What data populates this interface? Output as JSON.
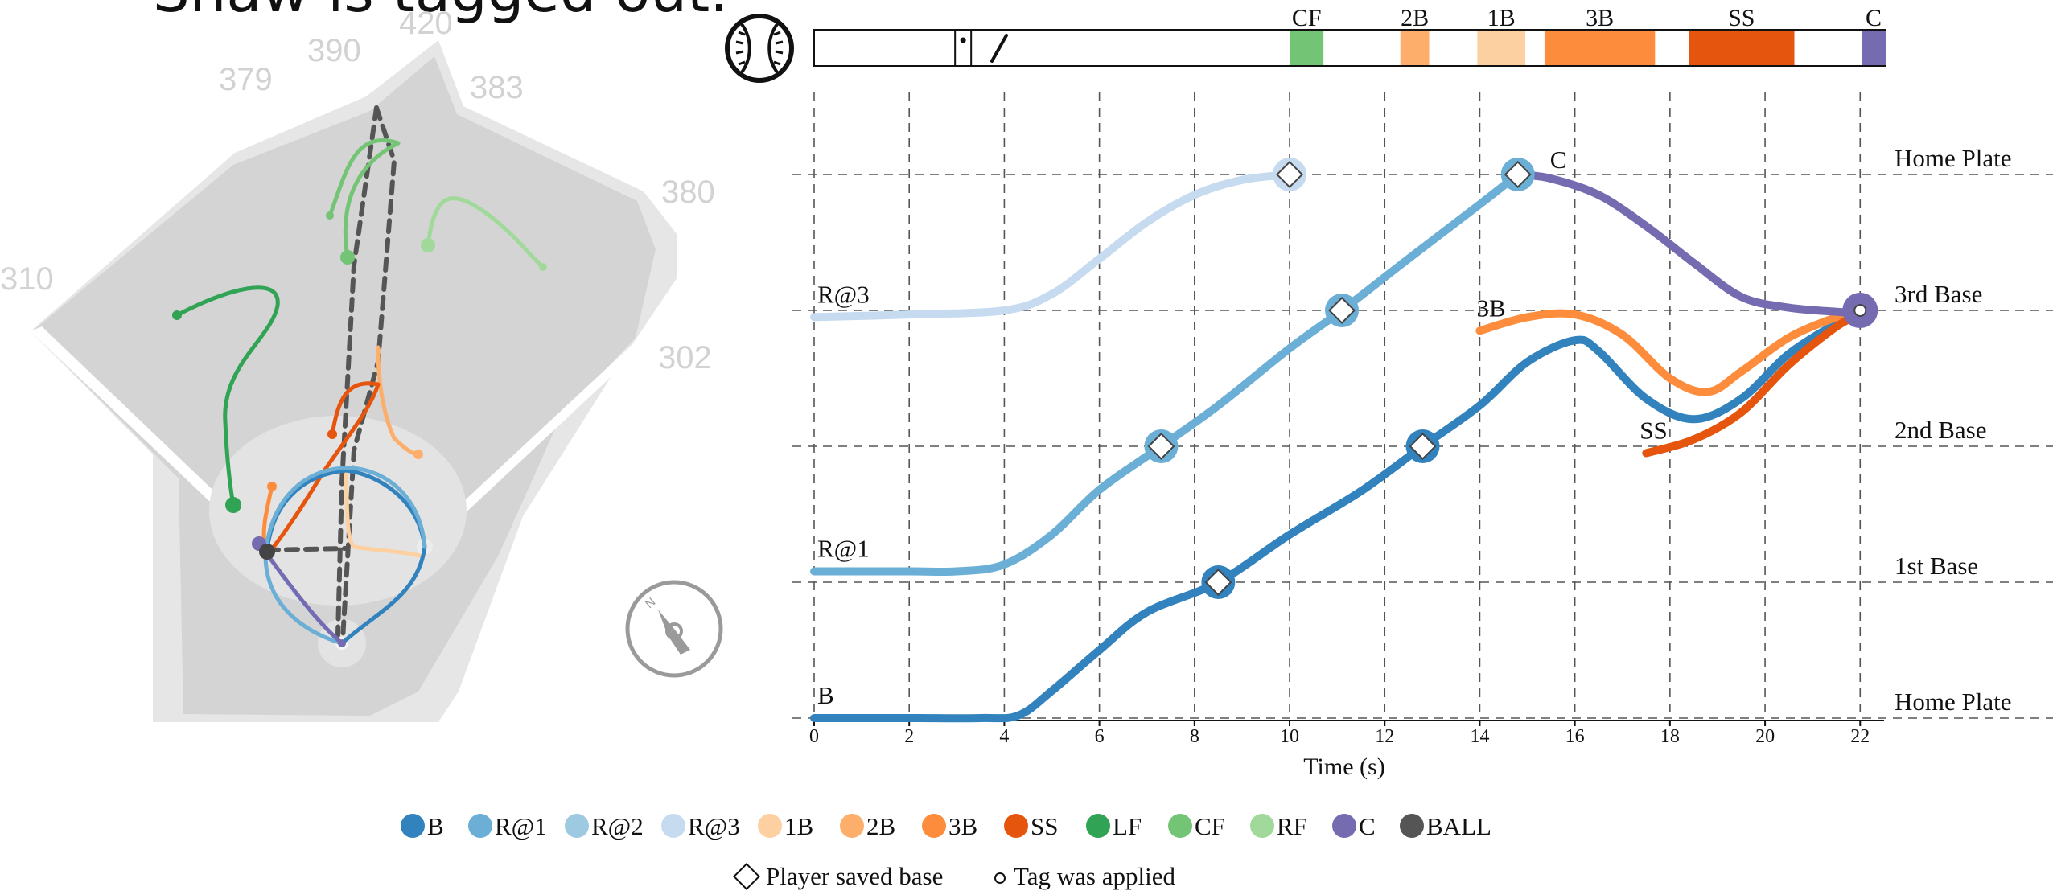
{
  "caption_fragment": "Shaw is tagged out.",
  "field": {
    "distances": [
      "310",
      "379",
      "390",
      "420",
      "383",
      "380",
      "302"
    ],
    "compass_letter": "N"
  },
  "timeline": {
    "events": [
      {
        "label": "CF",
        "start": 9.9,
        "end": 10.6,
        "color": "#74c476"
      },
      {
        "label": "2B",
        "start": 12.2,
        "end": 12.8,
        "color": "#fdae6b"
      },
      {
        "label": "1B",
        "start": 13.8,
        "end": 14.8,
        "color": "#fdd0a2"
      },
      {
        "label": "3B",
        "start": 15.2,
        "end": 17.5,
        "color": "#fd8d3c"
      },
      {
        "label": "SS",
        "start": 18.2,
        "end": 20.4,
        "color": "#e6550d"
      },
      {
        "label": "C",
        "start": 21.8,
        "end": 22.3,
        "color": "#756bb1"
      }
    ],
    "pitch_mark": 3.1,
    "swing_mark": 3.7
  },
  "chart_data": {
    "type": "line",
    "title": "",
    "xlabel": "Time (s)",
    "ylabel": "",
    "xlim": [
      0,
      22.3
    ],
    "x_ticks": [
      0,
      2,
      4,
      6,
      8,
      10,
      12,
      14,
      16,
      18,
      20,
      22
    ],
    "y_levels": [
      "Home Plate",
      "1st Base",
      "2nd Base",
      "3rd Base",
      "Home Plate"
    ],
    "ylim": [
      0,
      4
    ],
    "series": [
      {
        "name": "R@3",
        "label": "R@3",
        "color": "#c6dbef",
        "x": [
          0,
          2,
          4,
          5,
          6,
          7,
          8,
          9,
          10
        ],
        "y": [
          2.95,
          2.97,
          3,
          3.12,
          3.38,
          3.65,
          3.85,
          3.96,
          4
        ]
      },
      {
        "name": "R@1",
        "label": "R@1",
        "color": "#6baed6",
        "x": [
          0,
          2,
          3,
          4,
          5,
          6,
          7.3,
          8.5,
          10,
          11.1,
          12.5,
          14,
          14.8
        ],
        "y": [
          1.08,
          1.08,
          1.08,
          1.13,
          1.35,
          1.68,
          2,
          2.3,
          2.72,
          3,
          3.38,
          3.78,
          4
        ]
      },
      {
        "name": "B",
        "label": "B",
        "color": "#3182bd",
        "x": [
          0,
          2,
          3.5,
          4.3,
          5,
          6,
          7,
          8.5,
          10,
          11.5,
          12.8,
          14,
          15,
          16,
          16.5,
          17.5,
          18.5,
          19.5,
          20.5,
          21.5,
          22
        ],
        "y": [
          0,
          0,
          0,
          0.02,
          0.2,
          0.5,
          0.78,
          1,
          1.35,
          1.67,
          2,
          2.3,
          2.62,
          2.78,
          2.7,
          2.35,
          2.2,
          2.35,
          2.68,
          2.9,
          2.97
        ]
      },
      {
        "name": "3B",
        "label": "3B",
        "color": "#fd8d3c",
        "x": [
          14,
          15,
          16,
          17,
          18,
          18.8,
          19.5,
          20.5,
          21.5,
          22
        ],
        "y": [
          2.85,
          2.95,
          2.97,
          2.82,
          2.5,
          2.4,
          2.55,
          2.8,
          2.95,
          3
        ]
      },
      {
        "name": "SS",
        "label": "SS",
        "color": "#e6550d",
        "x": [
          17.5,
          18.5,
          19.5,
          20.5,
          21.5,
          22
        ],
        "y": [
          1.95,
          2.05,
          2.25,
          2.6,
          2.88,
          2.97
        ]
      },
      {
        "name": "C",
        "label": "C",
        "color": "#756bb1",
        "x": [
          14.8,
          15.5,
          16.5,
          17.5,
          18.5,
          19.5,
          20.5,
          21.5,
          22
        ],
        "y": [
          4,
          3.97,
          3.85,
          3.62,
          3.35,
          3.1,
          3.02,
          2.99,
          2.98
        ]
      }
    ],
    "saved_base_markers": [
      {
        "series": "R@3",
        "x": 10,
        "y": 4
      },
      {
        "series": "R@1",
        "x": 7.3,
        "y": 2
      },
      {
        "series": "R@1",
        "x": 11.1,
        "y": 3
      },
      {
        "series": "R@1",
        "x": 14.8,
        "y": 4
      },
      {
        "series": "B",
        "x": 8.5,
        "y": 1
      },
      {
        "series": "B",
        "x": 12.8,
        "y": 2
      }
    ],
    "tag_marker": {
      "x": 22,
      "y": 3
    }
  },
  "legend": {
    "players": [
      {
        "label": "B",
        "color": "#3182bd"
      },
      {
        "label": "R@1",
        "color": "#6baed6"
      },
      {
        "label": "R@2",
        "color": "#9ecae1"
      },
      {
        "label": "R@3",
        "color": "#c6dbef"
      },
      {
        "label": "1B",
        "color": "#fdd0a2"
      },
      {
        "label": "2B",
        "color": "#fdae6b"
      },
      {
        "label": "3B",
        "color": "#fd8d3c"
      },
      {
        "label": "SS",
        "color": "#e6550d"
      },
      {
        "label": "LF",
        "color": "#31a354"
      },
      {
        "label": "CF",
        "color": "#74c476"
      },
      {
        "label": "RF",
        "color": "#a1d99b"
      },
      {
        "label": "C",
        "color": "#756bb1"
      },
      {
        "label": "BALL",
        "color": "#555555"
      }
    ],
    "saved_label": "Player saved base",
    "tag_label": "Tag was applied"
  }
}
